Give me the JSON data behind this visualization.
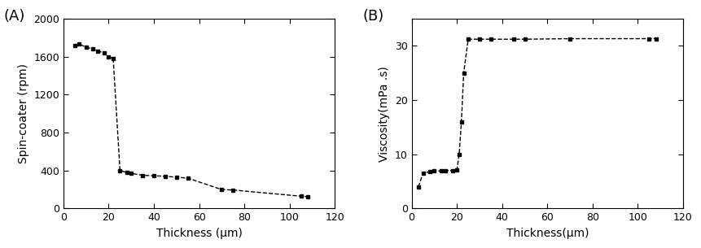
{
  "plot_A": {
    "label": "(A)",
    "x": [
      5,
      7,
      10,
      13,
      15,
      18,
      20,
      22,
      25,
      28,
      30,
      35,
      40,
      45,
      50,
      55,
      70,
      75,
      105,
      108
    ],
    "y": [
      1720,
      1730,
      1700,
      1680,
      1660,
      1640,
      1600,
      1580,
      400,
      380,
      370,
      350,
      345,
      340,
      330,
      320,
      200,
      195,
      130,
      125
    ],
    "xlabel": "Thickness (μm)",
    "ylabel": "Spin-coater (rpm)",
    "xlim": [
      0,
      120
    ],
    "ylim": [
      0,
      2000
    ],
    "xticks": [
      0,
      20,
      40,
      60,
      80,
      100,
      120
    ],
    "yticks": [
      0,
      400,
      800,
      1200,
      1600,
      2000
    ]
  },
  "plot_B": {
    "label": "(B)",
    "x": [
      3,
      5,
      8,
      10,
      13,
      15,
      18,
      20,
      21,
      22,
      23,
      25,
      30,
      35,
      45,
      50,
      70,
      105,
      108
    ],
    "y": [
      4,
      6.5,
      6.8,
      7.0,
      6.9,
      7.0,
      7.0,
      7.1,
      10.0,
      16.0,
      25.0,
      31.2,
      31.2,
      31.2,
      31.2,
      31.2,
      31.3,
      31.3,
      31.3
    ],
    "xlabel": "Thickness(μm)",
    "ylabel": "Viscosity(mPa .s)",
    "xlim": [
      0,
      120
    ],
    "ylim": [
      0,
      35
    ],
    "xticks": [
      0,
      20,
      40,
      60,
      80,
      100,
      120
    ],
    "yticks": [
      0,
      10,
      20,
      30
    ]
  },
  "line_color": "#000000",
  "marker": "s",
  "markersize": 3.5,
  "linewidth": 1.0,
  "bg_color": "#ffffff",
  "label_fontsize": 10,
  "tick_fontsize": 9,
  "panel_label_fontsize": 13
}
